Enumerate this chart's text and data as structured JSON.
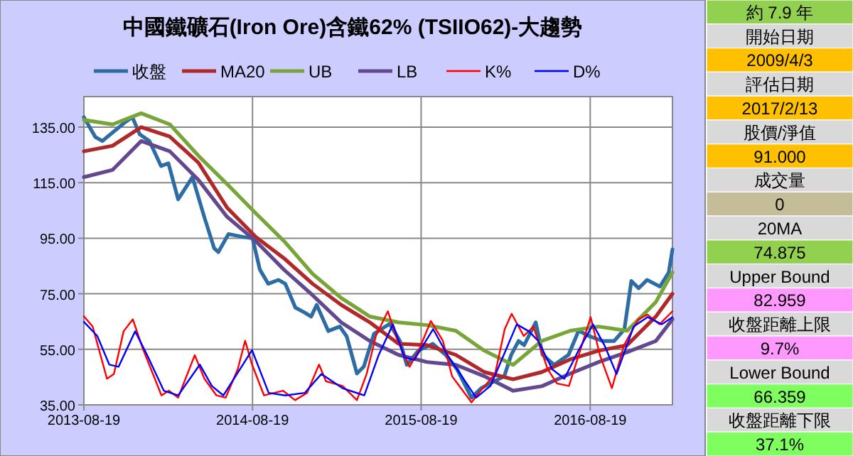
{
  "chart_data": [
    {
      "type": "line",
      "title": "中國鐵礦石(Iron Ore)含鐵62% (TSIIO62)-大趨勢",
      "legend": "top",
      "grid": true,
      "line_style": "solid",
      "xlim": [
        "2013-08-19",
        "2017-02-13"
      ],
      "xticks": [
        "2013-08-19",
        "2014-08-19",
        "2015-08-19",
        "2016-08-19"
      ],
      "ylim": [
        35,
        146
      ],
      "yticks": [
        {
          "value": 35,
          "label": "35.00"
        },
        {
          "value": 55,
          "label": "55.00"
        },
        {
          "value": 75,
          "label": "75.00"
        },
        {
          "value": 95,
          "label": "95.00"
        },
        {
          "value": 115,
          "label": "115.00"
        },
        {
          "value": 135,
          "label": "135.00"
        }
      ],
      "series": [
        {
          "name": "收盤",
          "color": "#2e6da4",
          "x": [
            "2013-08-19",
            "2013-09-13",
            "2013-09-28",
            "2013-11-14",
            "2013-12-02",
            "2013-12-18",
            "2014-01-08",
            "2014-02-02",
            "2014-02-18",
            "2014-03-11",
            "2014-04-11",
            "2014-05-06",
            "2014-05-28",
            "2014-06-06",
            "2014-06-28",
            "2014-07-29",
            "2014-08-19",
            "2014-09-04",
            "2014-09-22",
            "2014-10-14",
            "2014-10-29",
            "2014-11-20",
            "2014-12-09",
            "2014-12-24",
            "2015-01-05",
            "2015-01-30",
            "2015-02-24",
            "2015-03-11",
            "2015-04-02",
            "2015-04-17",
            "2015-05-09",
            "2015-06-12",
            "2015-07-04",
            "2015-07-19",
            "2015-08-13",
            "2015-09-13",
            "2015-10-11",
            "2015-11-05",
            "2015-12-06",
            "2015-12-27",
            "2016-01-27",
            "2016-02-15",
            "2016-03-01",
            "2016-03-17",
            "2016-03-29",
            "2016-04-23",
            "2016-05-08",
            "2016-06-02",
            "2016-07-03",
            "2016-07-25",
            "2016-08-19",
            "2016-09-15",
            "2016-10-10",
            "2016-11-01",
            "2016-11-16",
            "2016-12-02",
            "2016-12-20",
            "2017-01-17",
            "2017-02-05",
            "2017-02-13"
          ],
          "values": [
            138.6,
            131.4,
            130,
            136.5,
            138.6,
            132.4,
            130,
            121,
            122,
            109,
            117,
            103,
            91.4,
            90,
            96.5,
            95.5,
            95,
            83.7,
            78.6,
            80,
            78.6,
            70,
            68.3,
            66.8,
            71,
            61.6,
            63.2,
            59.6,
            46.3,
            48.8,
            60.6,
            64.2,
            58,
            49.4,
            54.5,
            57,
            53,
            47.8,
            37.6,
            41,
            43.7,
            45.3,
            53,
            58,
            56.5,
            64.7,
            53,
            49.4,
            53,
            61.7,
            59.6,
            58,
            58,
            62.2,
            79.6,
            77,
            80,
            77.6,
            82.7,
            91
          ]
        },
        {
          "name": "MA20",
          "color": "#b0282a",
          "x": [
            "2013-08-19",
            "2013-10-20",
            "2013-12-21",
            "2014-02-21",
            "2014-04-24",
            "2014-06-25",
            "2014-08-26",
            "2014-10-26",
            "2014-12-27",
            "2015-02-27",
            "2015-04-30",
            "2015-07-01",
            "2015-09-01",
            "2015-11-02",
            "2016-01-03",
            "2016-03-05",
            "2016-05-06",
            "2016-07-07",
            "2016-09-06",
            "2016-11-07",
            "2017-01-08",
            "2017-02-13"
          ],
          "values": [
            126.3,
            128.3,
            135,
            131.6,
            122.2,
            106,
            95.5,
            87.8,
            78.6,
            71,
            64.7,
            57,
            56.5,
            53,
            46.8,
            44.2,
            46.8,
            51.4,
            54.5,
            56.5,
            66.8,
            75
          ]
        },
        {
          "name": "UB",
          "color": "#78a538",
          "x": [
            "2013-08-19",
            "2013-10-20",
            "2013-12-21",
            "2014-02-21",
            "2014-04-24",
            "2014-06-25",
            "2014-08-26",
            "2014-10-26",
            "2014-12-27",
            "2015-02-27",
            "2015-04-30",
            "2015-07-01",
            "2015-09-01",
            "2015-11-02",
            "2016-01-03",
            "2016-03-05",
            "2016-05-06",
            "2016-07-07",
            "2016-09-06",
            "2016-11-07",
            "2017-01-08",
            "2017-02-13"
          ],
          "values": [
            137.6,
            136,
            140,
            136,
            124.7,
            114.5,
            104,
            94,
            82.2,
            73.5,
            66.8,
            64.7,
            63.7,
            61.7,
            54.5,
            49.4,
            58,
            61.7,
            63.2,
            61.7,
            72,
            82.7
          ]
        },
        {
          "name": "LB",
          "color": "#62488f",
          "x": [
            "2013-08-19",
            "2013-10-20",
            "2013-12-21",
            "2014-02-21",
            "2014-04-24",
            "2014-06-25",
            "2014-08-26",
            "2014-10-26",
            "2014-12-27",
            "2015-02-27",
            "2015-04-30",
            "2015-07-01",
            "2015-09-01",
            "2015-11-02",
            "2016-01-03",
            "2016-03-05",
            "2016-05-06",
            "2016-07-07",
            "2016-09-06",
            "2016-11-07",
            "2017-01-08",
            "2017-02-13"
          ],
          "values": [
            117,
            119.6,
            130,
            126.3,
            116,
            102.7,
            94,
            83.7,
            74.5,
            64.7,
            58,
            53,
            50.4,
            49.4,
            45.3,
            40.1,
            41.7,
            46.3,
            50.4,
            54,
            58,
            65.8
          ]
        },
        {
          "name": "K%",
          "color": "#ff0000",
          "x": [
            "2013-08-19",
            "2013-09-07",
            "2013-10-08",
            "2013-10-23",
            "2013-11-13",
            "2013-12-03",
            "2013-12-24",
            "2014-02-03",
            "2014-02-19",
            "2014-03-11",
            "2014-04-16",
            "2014-05-07",
            "2014-06-02",
            "2014-06-22",
            "2014-07-18",
            "2014-08-03",
            "2014-08-18",
            "2014-09-13",
            "2014-10-24",
            "2014-11-19",
            "2014-12-15",
            "2015-01-10",
            "2015-01-25",
            "2015-03-02",
            "2015-04-02",
            "2015-04-23",
            "2015-05-13",
            "2015-06-08",
            "2015-06-29",
            "2015-07-25",
            "2015-08-14",
            "2015-09-09",
            "2015-10-05",
            "2015-10-25",
            "2015-12-06",
            "2015-12-26",
            "2016-01-26",
            "2016-02-16",
            "2016-03-02",
            "2016-03-28",
            "2016-04-18",
            "2016-05-19",
            "2016-06-08",
            "2016-07-04",
            "2016-07-25",
            "2016-08-20",
            "2016-09-09",
            "2016-10-05",
            "2016-10-31",
            "2016-12-01",
            "2016-12-21",
            "2017-01-16",
            "2017-02-13"
          ],
          "values": [
            66.9,
            63.2,
            44.4,
            46.1,
            61.5,
            65.8,
            55.5,
            38.4,
            40.1,
            37.6,
            52.9,
            44.4,
            38.4,
            37.6,
            47.8,
            58.1,
            49.5,
            38.4,
            40.1,
            36.7,
            39.3,
            49.5,
            43.5,
            41.8,
            36.7,
            46.1,
            59.8,
            68.7,
            58.1,
            48.7,
            54.7,
            65.2,
            58.1,
            45.3,
            35.9,
            40.1,
            46.1,
            62.3,
            67.8,
            59.8,
            63.2,
            47.8,
            42.7,
            41.8,
            52.9,
            66.6,
            52.9,
            41,
            56.4,
            65.8,
            67.5,
            64,
            68.7
          ]
        },
        {
          "name": "D%",
          "color": "#0000ff",
          "x": [
            "2013-08-19",
            "2013-09-17",
            "2013-10-13",
            "2013-11-02",
            "2013-12-08",
            "2014-01-03",
            "2014-02-08",
            "2014-03-11",
            "2014-04-27",
            "2014-05-23",
            "2014-06-17",
            "2014-08-18",
            "2014-09-23",
            "2014-10-29",
            "2014-12-10",
            "2015-01-15",
            "2015-03-02",
            "2015-04-18",
            "2015-05-19",
            "2015-06-19",
            "2015-07-14",
            "2015-08-04",
            "2015-09-14",
            "2015-10-15",
            "2015-11-15",
            "2015-12-16",
            "2016-01-16",
            "2016-02-16",
            "2016-03-13",
            "2016-04-08",
            "2016-04-28",
            "2016-05-29",
            "2016-06-24",
            "2016-07-25",
            "2016-08-25",
            "2016-09-19",
            "2016-10-15",
            "2016-11-21",
            "2016-12-21",
            "2017-01-21",
            "2017-02-13"
          ],
          "values": [
            64.9,
            59.8,
            49.5,
            48.7,
            61.5,
            52.9,
            40.1,
            38.4,
            49.5,
            41.8,
            38.4,
            54.7,
            39.3,
            38.4,
            39.3,
            46.1,
            41,
            38.4,
            52.9,
            64,
            52.1,
            51.2,
            62.3,
            52.9,
            45.3,
            37.6,
            41.8,
            53.8,
            64,
            61.5,
            58.1,
            47.8,
            44.4,
            54.7,
            64,
            56.4,
            46.1,
            63.2,
            66.6,
            64,
            66.6
          ]
        }
      ]
    },
    {
      "type": "other",
      "annotations": [
        "約 7.9 年",
        "開始日期",
        "2009/4/3",
        "評估日期",
        "2017/2/13",
        "股價/淨值",
        "91.000",
        "成交量",
        "0",
        "20MA",
        "74.875",
        "Upper Bound",
        "82.959",
        "收盤距離上限",
        "9.7%",
        "Lower Bound",
        "66.359",
        "收盤距離下限",
        "37.1%"
      ],
      "colors": [
        "#92d050",
        "#d9d9d9",
        "#ffc000",
        "#d9d9d9",
        "#ffc000",
        "#d9d9d9",
        "#ffc000",
        "#d9d9d9",
        "#c4bd97",
        "#d9d9d9",
        "#92d050",
        "#d9d9d9",
        "#ff99ff",
        "#d9d9d9",
        "#ff99ff",
        "#d9d9d9",
        "#7fff5f",
        "#d9d9d9",
        "#7fff5f"
      ]
    }
  ]
}
